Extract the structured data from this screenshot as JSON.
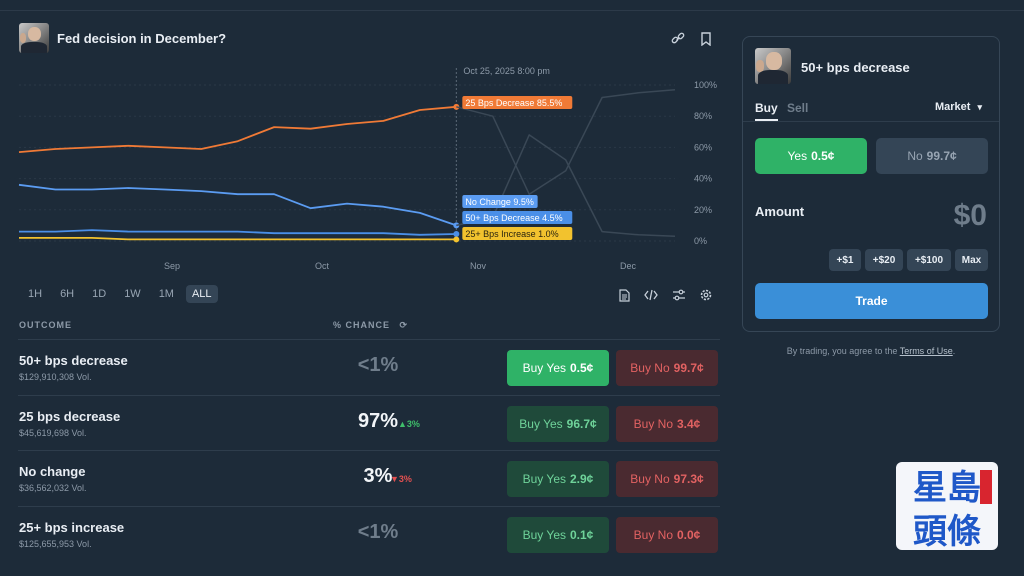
{
  "market": {
    "title": "Fed decision in December?"
  },
  "chart": {
    "hover_date": "Oct 25, 2025 8:00 pm",
    "y_ticks": [
      "100%",
      "80%",
      "60%",
      "40%",
      "20%",
      "0%"
    ],
    "x_ticks": [
      "Sep",
      "Oct",
      "Nov",
      "Dec"
    ],
    "series_labels": [
      {
        "text": "25 Bps Decrease 85.5%",
        "color": "#f07a36"
      },
      {
        "text": "No Change 9.5%",
        "color": "#5b9cf2"
      },
      {
        "text": "50+ Bps Decrease 4.5%",
        "color": "#4a8fe8"
      },
      {
        "text": "25+ Bps Increase 1.0%",
        "color": "#f2c22e"
      }
    ]
  },
  "chart_data": {
    "type": "line",
    "x": [
      "Aug 3",
      "Aug 10",
      "Aug 17",
      "Aug 24",
      "Aug 31",
      "Sep 7",
      "Sep 14",
      "Sep 21",
      "Sep 28",
      "Oct 5",
      "Oct 12",
      "Oct 19",
      "Oct 25",
      "Nov 2",
      "Nov 9",
      "Nov 16",
      "Nov 23",
      "Nov 30",
      "Dec 7"
    ],
    "series": [
      {
        "name": "25 Bps Decrease",
        "color": "#f07a36",
        "values": [
          57,
          59,
          60,
          61,
          60,
          59,
          64,
          73,
          72,
          75,
          77,
          84,
          86,
          null,
          null,
          null,
          null,
          null,
          null
        ]
      },
      {
        "name": "No Change",
        "color": "#5b9cf2",
        "values": [
          36,
          33,
          33,
          34,
          33,
          32,
          30,
          30,
          21,
          24,
          22,
          18,
          10,
          null,
          null,
          null,
          null,
          null,
          null
        ]
      },
      {
        "name": "50+ Bps Decrease",
        "color": "#4a8fe8",
        "values": [
          6,
          6,
          7,
          6,
          6,
          6,
          6,
          5,
          5,
          5,
          5,
          4,
          4.5,
          null,
          null,
          null,
          null,
          null,
          null
        ]
      },
      {
        "name": "25+ Bps Increase",
        "color": "#f2c22e",
        "values": [
          2,
          2,
          2,
          1,
          1,
          1,
          1,
          1,
          1,
          1,
          1,
          1,
          1,
          null,
          null,
          null,
          null,
          null,
          null
        ]
      },
      {
        "name": "",
        "color": "#3a4856",
        "values": [
          null,
          null,
          null,
          null,
          null,
          null,
          null,
          null,
          null,
          null,
          null,
          null,
          86,
          80,
          30,
          45,
          92,
          95,
          97
        ]
      },
      {
        "name": "",
        "color": "#3a4856",
        "values": [
          null,
          null,
          null,
          null,
          null,
          null,
          null,
          null,
          null,
          null,
          null,
          null,
          10,
          15,
          68,
          52,
          6,
          4,
          3
        ]
      }
    ],
    "ylim": [
      0,
      100
    ],
    "x_tick_labels": [
      "Sep",
      "Oct",
      "Nov",
      "Dec"
    ],
    "y_tick_labels": [
      "0%",
      "20%",
      "40%",
      "60%",
      "80%",
      "100%"
    ],
    "grid": true,
    "legend": "inline-labels-at-hover"
  },
  "range": {
    "buttons": [
      "1H",
      "6H",
      "1D",
      "1W",
      "1M",
      "ALL"
    ],
    "active": "ALL"
  },
  "columns": {
    "outcome": "OUTCOME",
    "chance": "% CHANCE"
  },
  "outcomes": [
    {
      "name": "50+ bps decrease",
      "vol": "$129,910,308 Vol.",
      "chance": "<1%",
      "delta": "",
      "yes": "Buy Yes",
      "yes_price": "0.5¢",
      "no": "Buy No",
      "no_price": "99.7¢"
    },
    {
      "name": "25 bps decrease",
      "vol": "$45,619,698 Vol.",
      "chance": "97%",
      "delta": "▲3%",
      "yes": "Buy Yes",
      "yes_price": "96.7¢",
      "no": "Buy No",
      "no_price": "3.4¢"
    },
    {
      "name": "No change",
      "vol": "$36,562,032 Vol.",
      "chance": "3%",
      "delta": "▼3%",
      "yes": "Buy Yes",
      "yes_price": "2.9¢",
      "no": "Buy No",
      "no_price": "97.3¢"
    },
    {
      "name": "25+ bps increase",
      "vol": "$125,655,953 Vol.",
      "chance": "<1%",
      "delta": "",
      "yes": "Buy Yes",
      "yes_price": "0.1¢",
      "no": "Buy No",
      "no_price": "0.0¢"
    }
  ],
  "panel": {
    "title": "50+ bps decrease",
    "buy_tab": "Buy",
    "sell_tab": "Sell",
    "order_type": "Market",
    "yes_label": "Yes",
    "yes_price": "0.5¢",
    "no_label": "No",
    "no_price": "99.7¢",
    "amount_label": "Amount",
    "amount_value": "$0",
    "chips": [
      "+$1",
      "+$20",
      "+$100",
      "Max"
    ],
    "trade_label": "Trade"
  },
  "terms": {
    "prefix": "By trading, you agree to the ",
    "link": "Terms of Use",
    "suffix": "."
  },
  "watermark": {
    "line1": "星島",
    "line2": "頭條"
  },
  "colors": {
    "background": "#1d2b39",
    "green": "#2fb267",
    "red": "#e26262",
    "blue": "#3a8fd8",
    "orange": "#f07a36",
    "yellow": "#f2c22e"
  }
}
